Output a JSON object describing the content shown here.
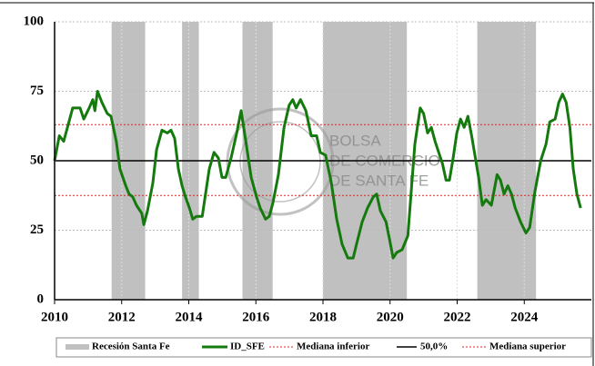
{
  "chart_data": {
    "type": "line",
    "xlim": [
      2010,
      2026
    ],
    "xticks": [
      2010,
      2012,
      2014,
      2016,
      2018,
      2020,
      2022,
      2024
    ],
    "ylim": [
      0,
      100
    ],
    "yticks": [
      0,
      25,
      50,
      75,
      100
    ],
    "grid": true,
    "recessions": {
      "name": "Recesión Santa Fe",
      "color": "#c0c0c0",
      "spans": [
        [
          2011.7,
          2012.7
        ],
        [
          2013.8,
          2014.3
        ],
        [
          2015.6,
          2016.5
        ],
        [
          2018.0,
          2020.5
        ],
        [
          2022.6,
          2024.35
        ]
      ]
    },
    "series": [
      {
        "name": "ID_SFE",
        "color": "#157a0e",
        "x": [
          2010,
          2010.14,
          2010.27,
          2010.54,
          2010.76,
          2010.87,
          2011.03,
          2011.14,
          2011.2,
          2011.28,
          2011.41,
          2011.57,
          2011.68,
          2011.84,
          2011.95,
          2012.12,
          2012.22,
          2012.33,
          2012.44,
          2012.6,
          2012.66,
          2012.77,
          2012.93,
          2013.04,
          2013.2,
          2013.36,
          2013.47,
          2013.58,
          2013.69,
          2013.8,
          2013.9,
          2014.02,
          2014.12,
          2014.23,
          2014.4,
          2014.5,
          2014.61,
          2014.75,
          2014.88,
          2014.99,
          2015.1,
          2015.26,
          2015.43,
          2015.56,
          2015.7,
          2015.86,
          2016.02,
          2016.13,
          2016.29,
          2016.4,
          2016.51,
          2016.67,
          2016.84,
          2016.99,
          2017.1,
          2017.2,
          2017.33,
          2017.49,
          2017.65,
          2017.81,
          2017.92,
          2018.08,
          2018.25,
          2018.41,
          2018.57,
          2018.74,
          2018.9,
          2019.0,
          2019.17,
          2019.33,
          2019.5,
          2019.6,
          2019.71,
          2019.88,
          2019.98,
          2020.09,
          2020.2,
          2020.36,
          2020.53,
          2020.63,
          2020.74,
          2020.9,
          2021.0,
          2021.12,
          2021.23,
          2021.34,
          2021.45,
          2021.56,
          2021.67,
          2021.77,
          2021.88,
          2021.99,
          2022.1,
          2022.21,
          2022.32,
          2022.43,
          2022.53,
          2022.64,
          2022.75,
          2022.86,
          2023.02,
          2023.19,
          2023.29,
          2023.4,
          2023.51,
          2023.62,
          2023.73,
          2023.89,
          2024.05,
          2024.16,
          2024.32,
          2024.49,
          2024.65,
          2024.76,
          2024.92,
          2025.03,
          2025.14,
          2025.25,
          2025.36,
          2025.46,
          2025.57,
          2025.68
        ],
        "values": [
          50,
          59,
          57,
          69,
          69,
          65,
          69,
          72,
          68,
          75,
          71,
          67,
          66,
          57,
          47,
          41,
          38,
          37,
          34,
          31,
          27,
          32,
          42,
          54,
          61,
          60,
          61,
          58,
          47,
          41,
          37,
          33,
          29,
          30,
          30,
          38,
          47,
          53,
          51,
          44,
          44,
          51,
          60,
          68,
          57,
          44,
          37,
          33,
          29,
          30,
          35,
          45,
          62,
          70,
          72,
          69,
          72,
          68,
          59,
          59,
          53,
          52,
          42,
          29,
          20,
          15,
          15,
          20,
          28,
          33,
          37,
          38,
          32,
          28,
          22,
          15,
          17,
          18,
          23,
          39,
          56,
          69,
          67,
          60,
          62,
          57,
          53,
          49,
          43,
          43,
          51,
          60,
          65,
          62,
          66,
          59,
          52,
          44,
          34,
          36,
          34,
          45,
          43,
          38,
          41,
          38,
          33,
          28,
          24,
          26,
          39,
          50,
          56,
          64,
          65,
          71,
          74,
          71,
          62,
          47,
          38,
          33
        ]
      }
    ],
    "reference_lines": [
      {
        "name": "Mediana inferior",
        "value": 37.5,
        "color": "#e02020",
        "style": "dotted"
      },
      {
        "name": "50,0%",
        "value": 50,
        "color": "#000000",
        "style": "solid"
      },
      {
        "name": "Mediana superior",
        "value": 63,
        "color": "#e02020",
        "style": "dotted"
      }
    ],
    "annotations": [
      "BOLSA",
      "DE COMERCIO",
      "DE SANTA FE"
    ]
  }
}
